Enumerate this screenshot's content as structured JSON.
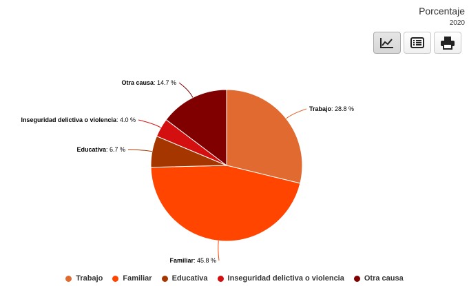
{
  "header": {
    "title": "Porcentaje",
    "year": "2020"
  },
  "toolbar": {
    "buttons": [
      {
        "icon": "line-chart-icon",
        "active": true
      },
      {
        "icon": "table-list-icon",
        "active": false
      },
      {
        "icon": "print-icon",
        "active": false
      }
    ]
  },
  "chart_data": {
    "type": "pie",
    "unit": "%",
    "legend_position": "bottom",
    "slices": [
      {
        "label": "Trabajo",
        "value": 28.8,
        "color": "#e06a30"
      },
      {
        "label": "Familiar",
        "value": 45.8,
        "color": "#ff4500"
      },
      {
        "label": "Educativa",
        "value": 6.7,
        "color": "#a53600"
      },
      {
        "label": "Inseguridad delictiva o violencia",
        "value": 4.0,
        "color": "#d40f0f"
      },
      {
        "label": "Otra causa",
        "value": 14.7,
        "color": "#800000"
      }
    ]
  }
}
